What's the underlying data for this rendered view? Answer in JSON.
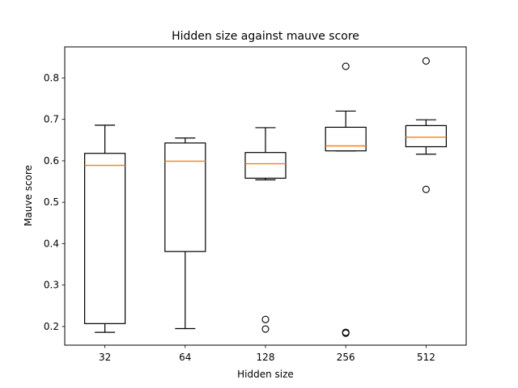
{
  "chart_data": {
    "type": "boxplot",
    "title": "Hidden size against mauve score",
    "xlabel": "Hidden size",
    "ylabel": "Mauve score",
    "categories": [
      "32",
      "64",
      "128",
      "256",
      "512"
    ],
    "ylim": [
      0.155,
      0.875
    ],
    "yticks": [
      0.2,
      0.3,
      0.4,
      0.5,
      0.6,
      0.7,
      0.8
    ],
    "ytick_labels": [
      "0.2",
      "0.3",
      "0.4",
      "0.5",
      "0.6",
      "0.7",
      "0.8"
    ],
    "grid": false,
    "boxes": [
      {
        "label": "32",
        "whislo": 0.186,
        "q1": 0.207,
        "med": 0.589,
        "q3": 0.618,
        "whishi": 0.686,
        "fliers": []
      },
      {
        "label": "64",
        "whislo": 0.195,
        "q1": 0.381,
        "med": 0.599,
        "q3": 0.643,
        "whishi": 0.655,
        "fliers": []
      },
      {
        "label": "128",
        "whislo": 0.554,
        "q1": 0.558,
        "med": 0.593,
        "q3": 0.62,
        "whishi": 0.68,
        "fliers": [
          0.217,
          0.194
        ]
      },
      {
        "label": "256",
        "whislo": 0.624,
        "q1": 0.624,
        "med": 0.636,
        "q3": 0.681,
        "whishi": 0.72,
        "fliers": [
          0.828,
          0.186,
          0.184
        ]
      },
      {
        "label": "512",
        "whislo": 0.616,
        "q1": 0.634,
        "med": 0.657,
        "q3": 0.685,
        "whishi": 0.699,
        "fliers": [
          0.841,
          0.531
        ]
      }
    ],
    "colors": {
      "box": "#000000",
      "median": "#ff7f0e",
      "background": "#ffffff"
    }
  }
}
